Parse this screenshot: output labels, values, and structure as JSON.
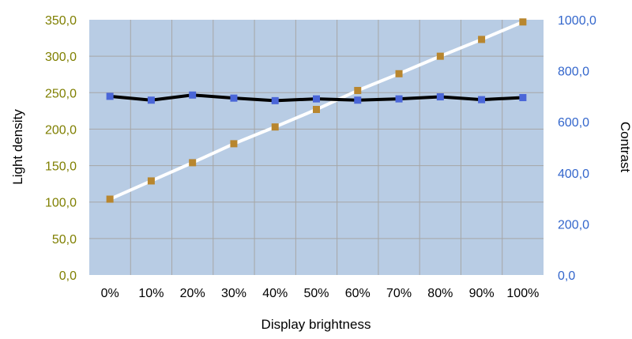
{
  "chart_data": {
    "type": "line",
    "x": [
      "0%",
      "10%",
      "20%",
      "30%",
      "40%",
      "50%",
      "60%",
      "70%",
      "80%",
      "90%",
      "100%"
    ],
    "xlabel": "Display brightness",
    "ylabel": "Light density",
    "y2label": "Contrast",
    "ylim": [
      0,
      350
    ],
    "y2lim": [
      0,
      1000
    ],
    "yticks": [
      "0,0",
      "50,0",
      "100,0",
      "150,0",
      "200,0",
      "250,0",
      "300,0",
      "350,0"
    ],
    "y2ticks": [
      "0,0",
      "200,0",
      "400,0",
      "600,0",
      "800,0",
      "1000,0"
    ],
    "grid": true,
    "series": [
      {
        "axis": "left",
        "line_color": "#ffffff",
        "marker_color": "#b8862e",
        "values": [
          104,
          129,
          154,
          180,
          203,
          227,
          253,
          276,
          300,
          323,
          347
        ]
      },
      {
        "axis": "right",
        "line_color": "#000000",
        "marker_color": "#4a66d8",
        "values": [
          700,
          685,
          705,
          693,
          683,
          690,
          685,
          690,
          698,
          687,
          695
        ]
      }
    ],
    "colors": {
      "plot_bg": "#b8cce4",
      "grid": "#a6a6a6",
      "left_axis_text": "#7f7f00",
      "right_axis_text": "#3366cc"
    }
  }
}
